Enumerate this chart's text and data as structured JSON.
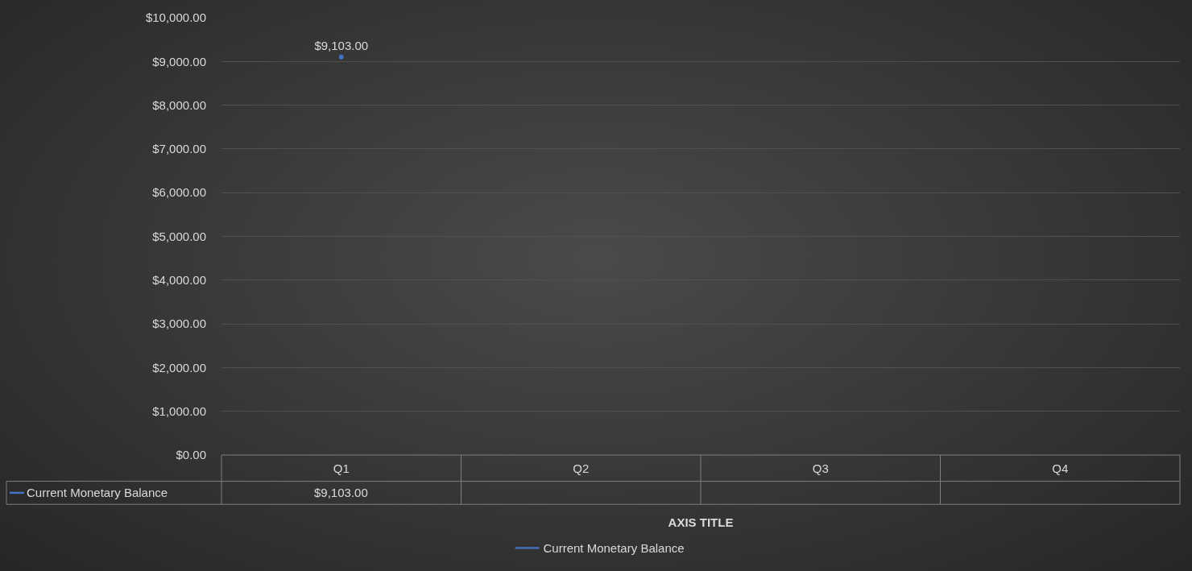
{
  "chart_data": {
    "type": "line",
    "xlabel": "AXIS TITLE",
    "categories": [
      "Q1",
      "Q2",
      "Q3",
      "Q4"
    ],
    "series": [
      {
        "name": "Current Monetary Balance",
        "color": "#4472c4",
        "values": [
          9103,
          null,
          null,
          null
        ],
        "value_labels": [
          "$9,103.00",
          null,
          null,
          null
        ]
      }
    ],
    "ylim": [
      0,
      10000
    ],
    "yticks": [
      {
        "value": 0,
        "label": "$0.00"
      },
      {
        "value": 1000,
        "label": "$1,000.00"
      },
      {
        "value": 2000,
        "label": "$2,000.00"
      },
      {
        "value": 3000,
        "label": "$3,000.00"
      },
      {
        "value": 4000,
        "label": "$4,000.00"
      },
      {
        "value": 5000,
        "label": "$5,000.00"
      },
      {
        "value": 6000,
        "label": "$6,000.00"
      },
      {
        "value": 7000,
        "label": "$7,000.00"
      },
      {
        "value": 8000,
        "label": "$8,000.00"
      },
      {
        "value": 9000,
        "label": "$9,000.00"
      },
      {
        "value": 10000,
        "label": "$10,000.00"
      }
    ],
    "grid": "y",
    "legend": "bottom",
    "marker": "none",
    "line_style": "solid"
  }
}
